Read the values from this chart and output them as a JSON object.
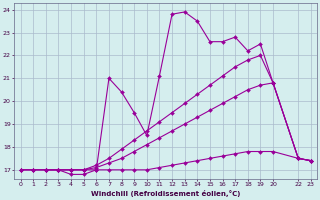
{
  "xlabel": "Windchill (Refroidissement éolien,°C)",
  "bg_color": "#d5eeee",
  "grid_color": "#aabbcc",
  "line_color": "#990099",
  "xlim": [
    -0.5,
    23.5
  ],
  "ylim": [
    16.6,
    24.3
  ],
  "yticks": [
    17,
    18,
    19,
    20,
    21,
    22,
    23,
    24
  ],
  "xticks": [
    0,
    1,
    2,
    3,
    4,
    5,
    6,
    7,
    8,
    9,
    10,
    11,
    12,
    13,
    14,
    15,
    16,
    17,
    18,
    19,
    20,
    22,
    23
  ],
  "line1_x": [
    0,
    1,
    2,
    3,
    4,
    5,
    6,
    7,
    8,
    9,
    10,
    11,
    12,
    13,
    14,
    15,
    16,
    17,
    18,
    19,
    20,
    22,
    23
  ],
  "line1_y": [
    17.0,
    17.0,
    17.0,
    17.0,
    17.0,
    17.0,
    17.0,
    17.0,
    17.0,
    17.0,
    17.0,
    17.1,
    17.2,
    17.3,
    17.4,
    17.5,
    17.6,
    17.7,
    17.8,
    17.8,
    17.8,
    17.5,
    17.4
  ],
  "line2_x": [
    0,
    1,
    2,
    3,
    4,
    5,
    6,
    7,
    8,
    9,
    10,
    11,
    12,
    13,
    14,
    15,
    16,
    17,
    18,
    19,
    20,
    22,
    23
  ],
  "line2_y": [
    17.0,
    17.0,
    17.0,
    17.0,
    17.0,
    17.0,
    17.1,
    17.3,
    17.5,
    17.8,
    18.1,
    18.4,
    18.7,
    19.0,
    19.3,
    19.6,
    19.9,
    20.2,
    20.5,
    20.7,
    20.8,
    17.5,
    17.4
  ],
  "line3_x": [
    0,
    1,
    2,
    3,
    4,
    5,
    6,
    7,
    8,
    9,
    10,
    11,
    12,
    13,
    14,
    15,
    16,
    17,
    18,
    19,
    20,
    22,
    23
  ],
  "line3_y": [
    17.0,
    17.0,
    17.0,
    17.0,
    17.0,
    17.0,
    17.2,
    17.5,
    17.9,
    18.3,
    18.7,
    19.1,
    19.5,
    19.9,
    20.3,
    20.7,
    21.1,
    21.5,
    21.8,
    22.0,
    20.8,
    17.5,
    17.4
  ],
  "line4_x": [
    2,
    3,
    4,
    5,
    6,
    7,
    8,
    9,
    10,
    11,
    12,
    13,
    14,
    15,
    16,
    17,
    18,
    19,
    20,
    22,
    23
  ],
  "line4_y": [
    17.0,
    17.0,
    16.8,
    16.8,
    17.0,
    21.0,
    20.4,
    19.5,
    18.5,
    21.1,
    23.8,
    23.9,
    23.5,
    22.6,
    22.6,
    22.8,
    22.2,
    22.5,
    20.8,
    17.5,
    17.4
  ]
}
